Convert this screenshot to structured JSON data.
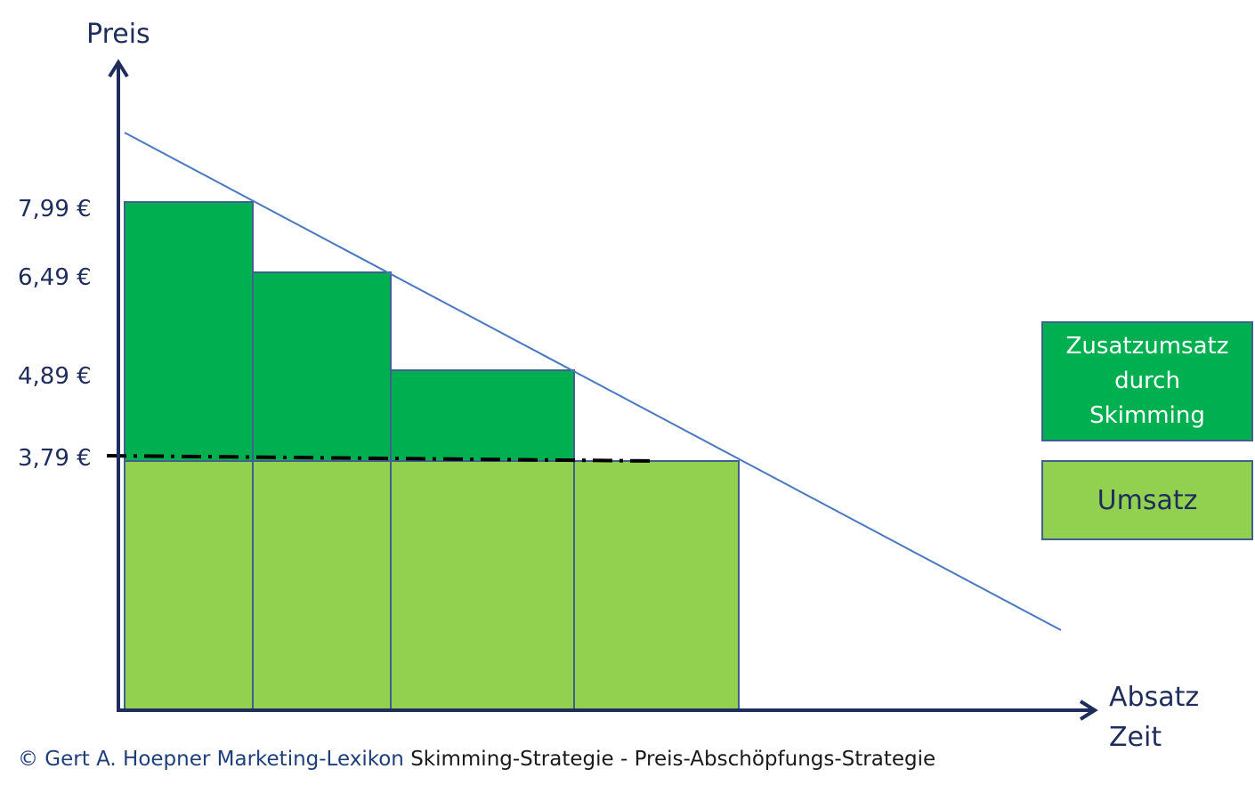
{
  "axes": {
    "y_label": "Preis",
    "x_label_line1": "Absatz",
    "x_label_line2": "Zeit"
  },
  "price_ticks": [
    "7,99 €",
    "6,49 €",
    "4,89 €",
    "3,79 €"
  ],
  "chart_data": {
    "type": "bar",
    "description_values": {
      "prices": [
        7.99,
        6.49,
        4.89,
        3.79
      ],
      "base_price": 3.79
    },
    "blocks": [
      {
        "price": 7.99,
        "series": "Zusatzumsatz durch Skimming"
      },
      {
        "price": 6.49,
        "series": "Zusatzumsatz durch Skimming"
      },
      {
        "price": 4.89,
        "series": "Zusatzumsatz durch Skimming"
      },
      {
        "price": 3.79,
        "series": "Umsatz"
      }
    ],
    "series": [
      {
        "name": "Zusatzumsatz durch Skimming",
        "color": "#00b050"
      },
      {
        "name": "Umsatz",
        "color": "#92d050"
      }
    ]
  },
  "legend": {
    "skimming_line1": "Zusatzumsatz",
    "skimming_line2": "durch",
    "skimming_line3": "Skimming",
    "umsatz": "Umsatz"
  },
  "footer": {
    "copyright": "© Gert A. Hoepner Marketing-Lexikon",
    "title": "Skimming-Strategie - Preis-Abschöpfungs-Strategie"
  },
  "colors": {
    "dark_green": "#00b050",
    "light_green": "#92d050",
    "axis": "#1f2d5c",
    "demand_line": "#4a78c0"
  }
}
